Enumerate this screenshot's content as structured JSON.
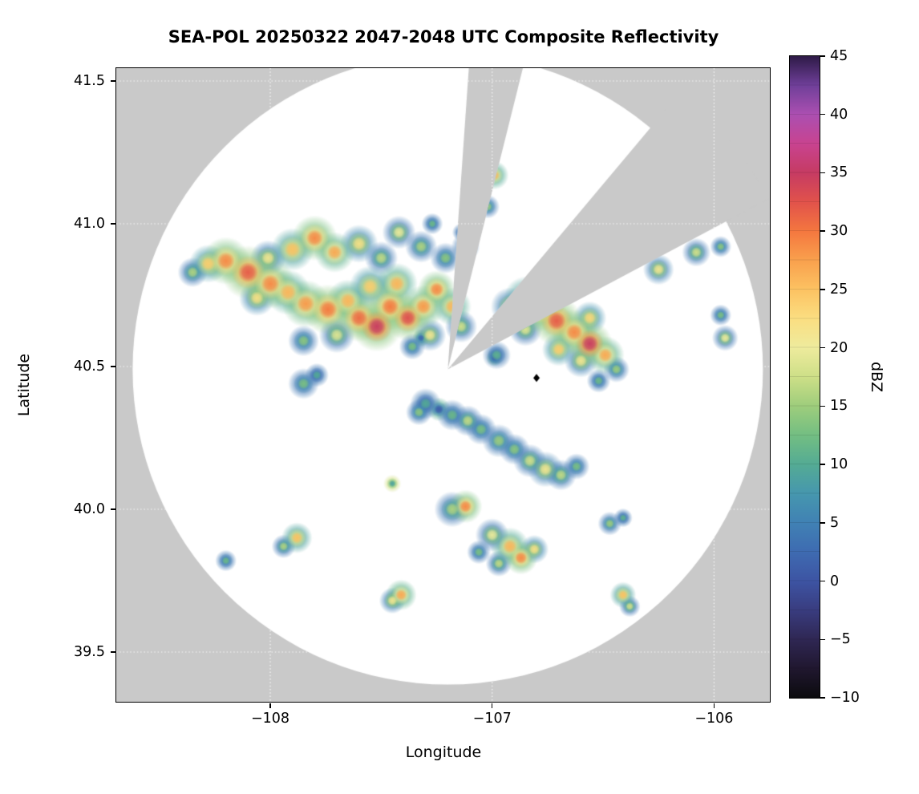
{
  "chart_data": {
    "type": "heatmap",
    "title": "SEA-POL 20250322 2047-2048 UTC Composite Reflectivity",
    "xlabel": "Longitude",
    "ylabel": "Latitude",
    "xlim": [
      -108.694,
      -105.7485
    ],
    "ylim": [
      39.3258,
      41.545
    ],
    "xticks": [
      {
        "value": -108,
        "label": "−108"
      },
      {
        "value": -107,
        "label": "−107"
      },
      {
        "value": -106,
        "label": "−106"
      }
    ],
    "yticks": [
      {
        "value": 39.5,
        "label": "39.5"
      },
      {
        "value": 40.0,
        "label": "40.0"
      },
      {
        "value": 40.5,
        "label": "40.5"
      },
      {
        "value": 41.0,
        "label": "41.0"
      },
      {
        "value": 41.5,
        "label": "41.5"
      }
    ],
    "grid": {
      "style": "dotted",
      "color": "#ffffff"
    },
    "background_outside_range": "#c9c9c9",
    "colorbar": {
      "label": "dBZ",
      "min": -10,
      "max": 45,
      "ticks": [
        {
          "value": -10,
          "label": "−10"
        },
        {
          "value": -5,
          "label": "−5"
        },
        {
          "value": 0,
          "label": "0"
        },
        {
          "value": 5,
          "label": "5"
        },
        {
          "value": 10,
          "label": "10"
        },
        {
          "value": 15,
          "label": "15"
        },
        {
          "value": 20,
          "label": "20"
        },
        {
          "value": 25,
          "label": "25"
        },
        {
          "value": 30,
          "label": "30"
        },
        {
          "value": 35,
          "label": "35"
        },
        {
          "value": 40,
          "label": "40"
        },
        {
          "value": 45,
          "label": "45"
        }
      ],
      "stops": [
        [
          -10,
          "#0b0b0e"
        ],
        [
          -7.5,
          "#20172f"
        ],
        [
          -5,
          "#2f2753"
        ],
        [
          -2.5,
          "#393c7f"
        ],
        [
          0,
          "#3d54a3"
        ],
        [
          2.5,
          "#3e6bb1"
        ],
        [
          5,
          "#4081b4"
        ],
        [
          7.5,
          "#4697ae"
        ],
        [
          10,
          "#54ab94"
        ],
        [
          12.5,
          "#73be82"
        ],
        [
          15,
          "#9ecd7c"
        ],
        [
          17.5,
          "#cddf87"
        ],
        [
          20,
          "#eeeb9d"
        ],
        [
          22.5,
          "#fbde81"
        ],
        [
          25,
          "#fcc262"
        ],
        [
          27.5,
          "#f9a04d"
        ],
        [
          30,
          "#f4773f"
        ],
        [
          32.5,
          "#e1524b"
        ],
        [
          35,
          "#c63b63"
        ],
        [
          37.5,
          "#c84390"
        ],
        [
          40,
          "#ab4fb1"
        ],
        [
          42.5,
          "#6f3f99"
        ],
        [
          45,
          "#2e1a47"
        ]
      ]
    },
    "radar": {
      "center_lon": -107.2,
      "center_lat": 40.49,
      "range_radius_deg_lat": 1.104,
      "blocked_sector_azimuths_deg": [
        [
          4,
          14
        ],
        [
          40,
          62
        ]
      ]
    },
    "marker": {
      "lon": -106.8,
      "lat": 40.46,
      "symbol": "diamond",
      "color": "#000000"
    },
    "echoes_format": [
      "lon",
      "lat",
      "dBZ",
      "radius_deg"
    ],
    "echoes": [
      [
        -108.35,
        40.83,
        16,
        0.025
      ],
      [
        -108.28,
        40.86,
        24,
        0.032
      ],
      [
        -108.2,
        40.87,
        29,
        0.04
      ],
      [
        -108.1,
        40.83,
        32,
        0.045
      ],
      [
        -108.0,
        40.79,
        29,
        0.042
      ],
      [
        -108.06,
        40.74,
        22,
        0.03
      ],
      [
        -107.92,
        40.76,
        26,
        0.038
      ],
      [
        -107.84,
        40.72,
        28,
        0.04
      ],
      [
        -107.74,
        40.7,
        30,
        0.042
      ],
      [
        -107.65,
        40.73,
        26,
        0.036
      ],
      [
        -107.6,
        40.67,
        31,
        0.04
      ],
      [
        -107.52,
        40.64,
        35,
        0.042
      ],
      [
        -107.46,
        40.71,
        30,
        0.04
      ],
      [
        -107.38,
        40.67,
        33,
        0.038
      ],
      [
        -107.31,
        40.71,
        28,
        0.036
      ],
      [
        -107.55,
        40.78,
        24,
        0.035
      ],
      [
        -107.43,
        40.79,
        26,
        0.035
      ],
      [
        -107.7,
        40.61,
        19,
        0.03
      ],
      [
        -107.85,
        40.59,
        14,
        0.026
      ],
      [
        -107.25,
        40.77,
        29,
        0.032
      ],
      [
        -107.18,
        40.71,
        26,
        0.032
      ],
      [
        -107.14,
        40.64,
        18,
        0.027
      ],
      [
        -107.28,
        40.61,
        21,
        0.027
      ],
      [
        -107.36,
        40.57,
        13,
        0.022
      ],
      [
        -107.32,
        40.6,
        2,
        0.015
      ],
      [
        -108.01,
        40.88,
        21,
        0.03
      ],
      [
        -107.9,
        40.91,
        25,
        0.036
      ],
      [
        -107.8,
        40.95,
        29,
        0.038
      ],
      [
        -107.71,
        40.9,
        27,
        0.034
      ],
      [
        -107.6,
        40.93,
        22,
        0.032
      ],
      [
        -107.5,
        40.88,
        17,
        0.028
      ],
      [
        -107.42,
        40.97,
        20,
        0.028
      ],
      [
        -107.32,
        40.92,
        16,
        0.027
      ],
      [
        -107.21,
        40.88,
        14,
        0.026
      ],
      [
        -107.12,
        40.92,
        15,
        0.024
      ],
      [
        -107.27,
        41.0,
        12,
        0.018
      ],
      [
        -107.14,
        40.97,
        10,
        0.015
      ],
      [
        -106.99,
        41.17,
        26,
        0.024
      ],
      [
        -107.02,
        41.06,
        15,
        0.02
      ],
      [
        -106.92,
        40.71,
        21,
        0.032
      ],
      [
        -106.85,
        40.74,
        25,
        0.036
      ],
      [
        -106.79,
        40.7,
        29,
        0.038
      ],
      [
        -106.71,
        40.66,
        32,
        0.042
      ],
      [
        -106.63,
        40.62,
        29,
        0.038
      ],
      [
        -106.56,
        40.58,
        35,
        0.038
      ],
      [
        -106.49,
        40.54,
        27,
        0.032
      ],
      [
        -106.6,
        40.52,
        21,
        0.028
      ],
      [
        -106.7,
        40.56,
        24,
        0.028
      ],
      [
        -106.85,
        40.63,
        19,
        0.028
      ],
      [
        -106.74,
        40.73,
        23,
        0.028
      ],
      [
        -106.56,
        40.67,
        23,
        0.028
      ],
      [
        -106.44,
        40.49,
        15,
        0.022
      ],
      [
        -106.52,
        40.45,
        12,
        0.02
      ],
      [
        -106.98,
        40.54,
        11,
        0.024
      ],
      [
        -106.99,
        40.53,
        2,
        0.014
      ],
      [
        -106.25,
        40.84,
        21,
        0.026
      ],
      [
        -106.08,
        40.9,
        18,
        0.024
      ],
      [
        -105.97,
        40.92,
        14,
        0.018
      ],
      [
        -105.95,
        40.6,
        20,
        0.022
      ],
      [
        -105.97,
        40.68,
        13,
        0.018
      ],
      [
        -107.85,
        40.44,
        13,
        0.026
      ],
      [
        -107.79,
        40.47,
        10,
        0.02
      ],
      [
        -107.3,
        40.37,
        10,
        0.026
      ],
      [
        -107.24,
        40.35,
        1,
        0.02
      ],
      [
        -107.18,
        40.33,
        12,
        0.026
      ],
      [
        -107.11,
        40.31,
        17,
        0.026
      ],
      [
        -107.33,
        40.34,
        14,
        0.022
      ],
      [
        -107.05,
        40.28,
        13,
        0.026
      ],
      [
        -106.97,
        40.24,
        15,
        0.028
      ],
      [
        -106.9,
        40.21,
        14,
        0.026
      ],
      [
        -106.83,
        40.17,
        18,
        0.028
      ],
      [
        -106.76,
        40.14,
        21,
        0.03
      ],
      [
        -106.69,
        40.12,
        17,
        0.026
      ],
      [
        -106.62,
        40.15,
        13,
        0.022
      ],
      [
        -107.12,
        40.01,
        29,
        0.028
      ],
      [
        -107.18,
        40.0,
        16,
        0.03
      ],
      [
        -107.0,
        39.91,
        20,
        0.028
      ],
      [
        -106.92,
        39.87,
        26,
        0.032
      ],
      [
        -106.87,
        39.83,
        29,
        0.028
      ],
      [
        -106.81,
        39.86,
        22,
        0.024
      ],
      [
        -106.97,
        39.81,
        17,
        0.022
      ],
      [
        -107.06,
        39.85,
        13,
        0.02
      ],
      [
        -106.47,
        39.95,
        15,
        0.02
      ],
      [
        -106.41,
        39.97,
        11,
        0.016
      ],
      [
        -107.41,
        39.7,
        27,
        0.026
      ],
      [
        -107.45,
        39.68,
        21,
        0.022
      ],
      [
        -106.41,
        39.7,
        25,
        0.022
      ],
      [
        -106.38,
        39.66,
        18,
        0.018
      ],
      [
        -107.88,
        39.9,
        25,
        0.026
      ],
      [
        -107.94,
        39.87,
        16,
        0.02
      ],
      [
        -108.2,
        39.82,
        12,
        0.018
      ],
      [
        -107.45,
        40.09,
        9,
        0.015
      ]
    ]
  }
}
